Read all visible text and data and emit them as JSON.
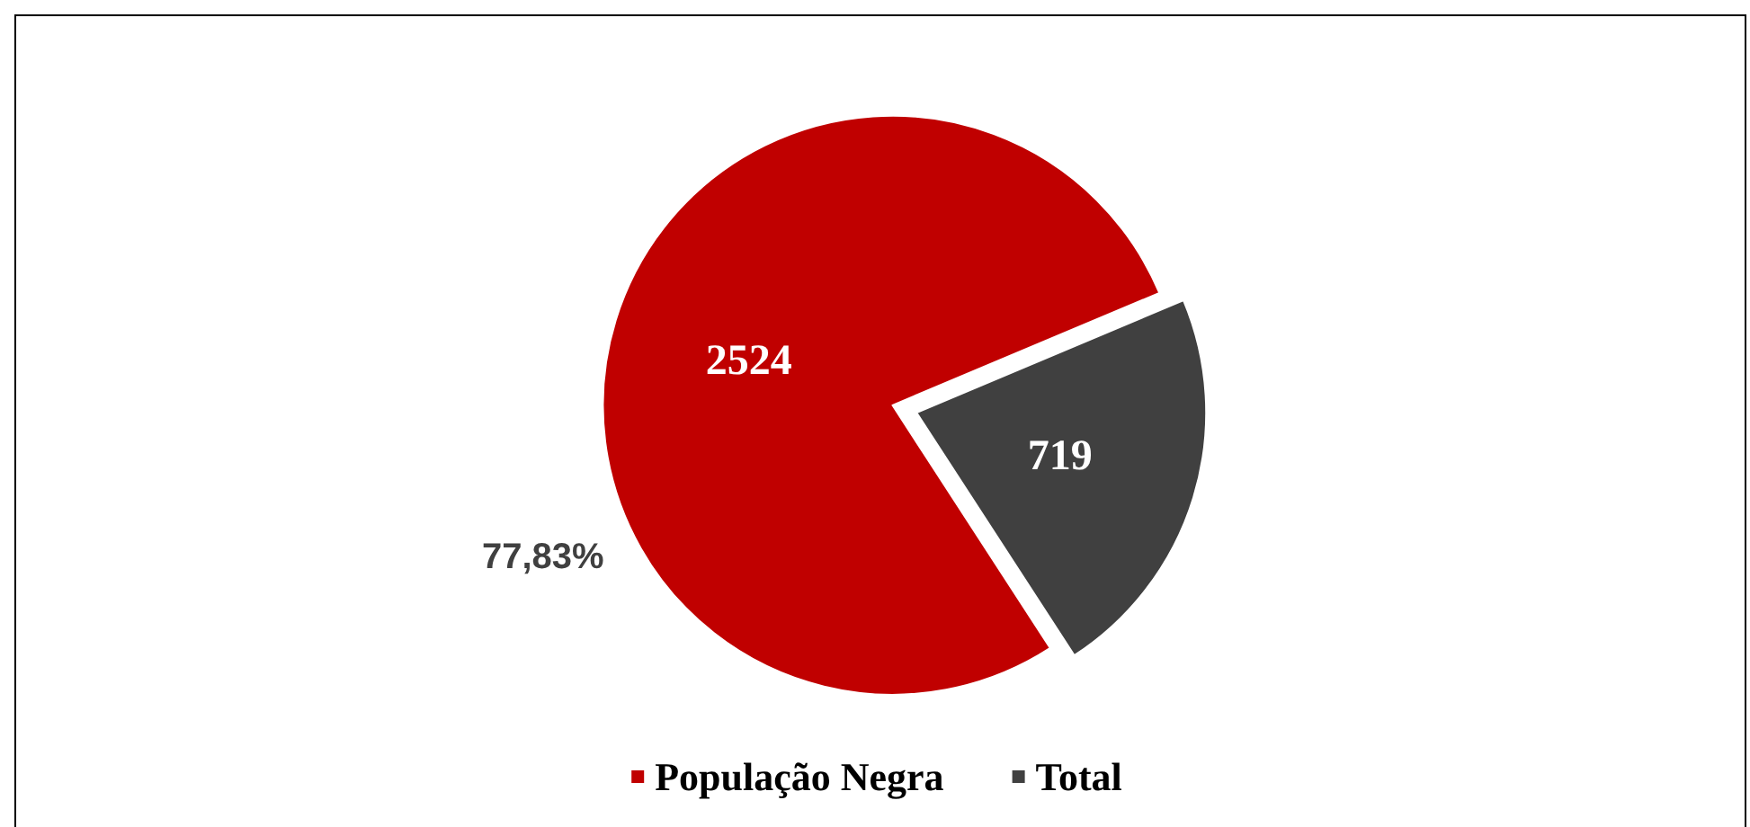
{
  "chart_data": {
    "type": "pie",
    "categories": [
      "População Negra",
      "Total"
    ],
    "values": [
      2524,
      719
    ],
    "colors": [
      "#c00000",
      "#404040"
    ],
    "data_labels": true,
    "legend": "bottom",
    "annotations": [
      "77,83%"
    ]
  }
}
